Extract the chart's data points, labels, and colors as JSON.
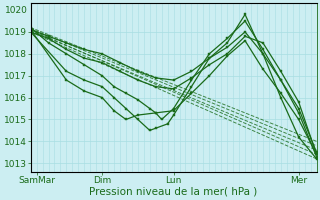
{
  "background_color": "#cceef2",
  "grid_color": "#a8dde2",
  "line_color": "#1a6b1a",
  "xlabel": "Pression niveau de la mer( hPa )",
  "xlabel_fontsize": 7.5,
  "yticks": [
    1013,
    1014,
    1015,
    1016,
    1017,
    1018,
    1019
  ],
  "ylim": [
    1012.6,
    1020.3
  ],
  "xlim": [
    0,
    96
  ],
  "xtick_positions": [
    2,
    24,
    48,
    90
  ],
  "xtick_labels": [
    "SamMar",
    "Dim",
    "Lun",
    "Mer"
  ],
  "tick_fontsize": 6.5,
  "series": [
    {
      "x": [
        0,
        96
      ],
      "y": [
        1019.0,
        1013.2
      ],
      "style": "dashed"
    },
    {
      "x": [
        0,
        96
      ],
      "y": [
        1019.1,
        1013.4
      ],
      "style": "dashed"
    },
    {
      "x": [
        0,
        96
      ],
      "y": [
        1019.05,
        1013.6
      ],
      "style": "dashed"
    },
    {
      "x": [
        0,
        96
      ],
      "y": [
        1019.15,
        1013.8
      ],
      "style": "dashed"
    },
    {
      "x": [
        0,
        96
      ],
      "y": [
        1019.2,
        1014.0
      ],
      "style": "dashed"
    },
    {
      "x": [
        0,
        12,
        18,
        24,
        28,
        32,
        36,
        42,
        48,
        54,
        60,
        66,
        72,
        78,
        84,
        90,
        96
      ],
      "y": [
        1019.1,
        1016.8,
        1016.3,
        1016.0,
        1015.4,
        1015.0,
        1015.2,
        1015.3,
        1015.4,
        1016.2,
        1017.0,
        1017.9,
        1018.6,
        1017.3,
        1016.2,
        1015.0,
        1013.4
      ],
      "style": "solid"
    },
    {
      "x": [
        0,
        12,
        18,
        24,
        28,
        32,
        36,
        40,
        42,
        46,
        48,
        54,
        60,
        66,
        72,
        78,
        84,
        90,
        96
      ],
      "y": [
        1019.0,
        1017.2,
        1016.8,
        1016.5,
        1016.0,
        1015.5,
        1015.0,
        1014.5,
        1014.6,
        1014.8,
        1015.2,
        1016.5,
        1017.8,
        1018.5,
        1019.8,
        1018.0,
        1016.0,
        1014.2,
        1013.2
      ],
      "style": "solid"
    },
    {
      "x": [
        0,
        6,
        12,
        18,
        24,
        28,
        32,
        36,
        40,
        42,
        44,
        48,
        54,
        60,
        66,
        72,
        78,
        84,
        90,
        96
      ],
      "y": [
        1019.2,
        1018.5,
        1018.0,
        1017.5,
        1017.0,
        1016.5,
        1016.2,
        1015.9,
        1015.5,
        1015.3,
        1015.0,
        1015.5,
        1016.8,
        1018.0,
        1018.7,
        1019.5,
        1018.2,
        1016.8,
        1015.3,
        1013.3
      ],
      "style": "solid"
    },
    {
      "x": [
        0,
        6,
        12,
        18,
        24,
        30,
        36,
        42,
        48,
        54,
        60,
        66,
        72,
        78,
        84,
        90,
        96
      ],
      "y": [
        1019.1,
        1018.8,
        1018.5,
        1018.2,
        1018.0,
        1017.6,
        1017.2,
        1016.9,
        1016.8,
        1017.2,
        1017.8,
        1018.3,
        1019.0,
        1018.0,
        1016.8,
        1015.5,
        1013.5
      ],
      "style": "solid"
    },
    {
      "x": [
        0,
        6,
        12,
        18,
        24,
        30,
        36,
        42,
        48,
        54,
        60,
        66,
        72,
        78,
        84,
        90,
        96
      ],
      "y": [
        1019.0,
        1018.7,
        1018.2,
        1017.8,
        1017.6,
        1017.2,
        1016.8,
        1016.5,
        1016.4,
        1016.9,
        1017.5,
        1018.0,
        1018.8,
        1018.5,
        1017.2,
        1015.8,
        1013.4
      ],
      "style": "solid"
    }
  ]
}
